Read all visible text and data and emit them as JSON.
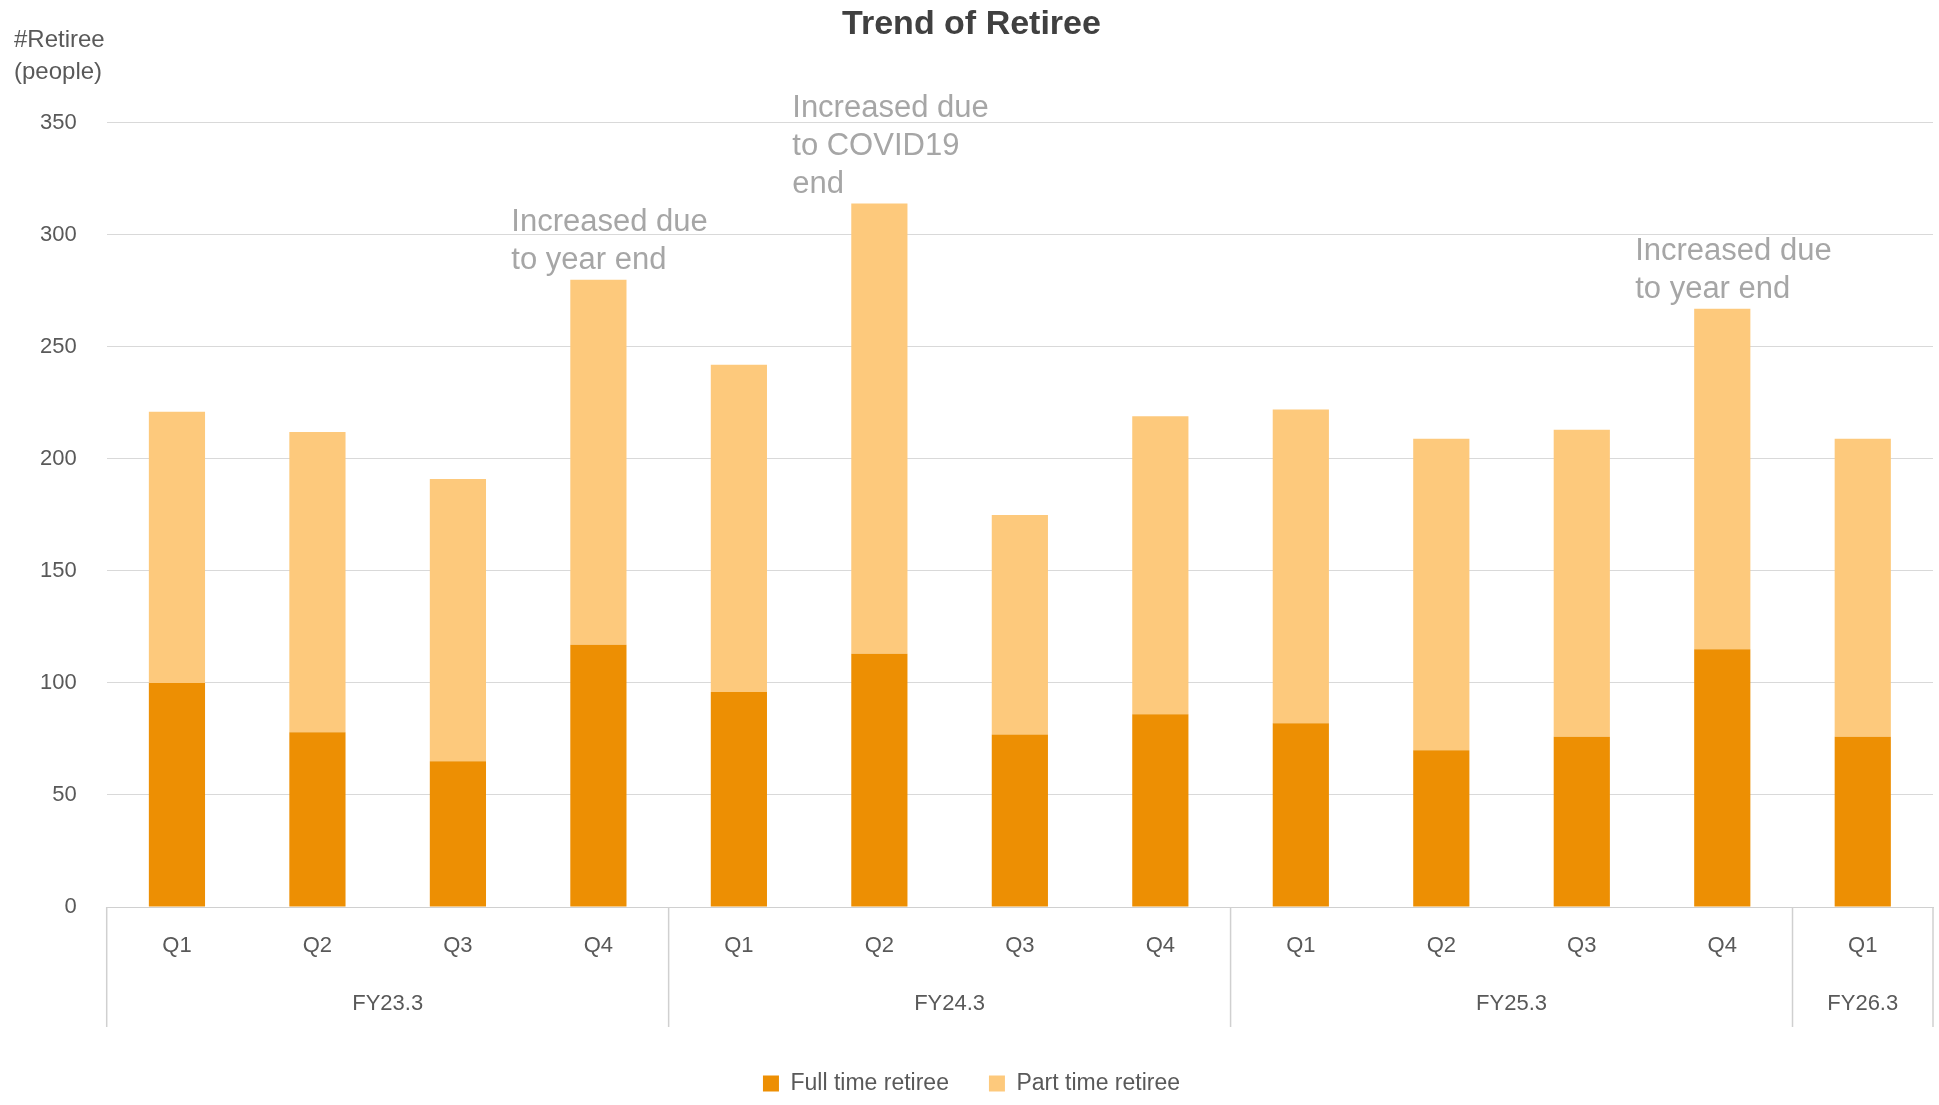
{
  "chart_data": {
    "type": "bar",
    "title": "Trend of Retiree",
    "ylabel": "#Retiree (people)",
    "categories": [
      "Q1",
      "Q2",
      "Q3",
      "Q4",
      "Q1",
      "Q2",
      "Q3",
      "Q4",
      "Q1",
      "Q2",
      "Q3",
      "Q4",
      "Q1"
    ],
    "stacked": true,
    "series": [
      {
        "name": "Full time retiree",
        "color": "#ed8f03",
        "values": [
          100,
          78,
          65,
          117,
          96,
          113,
          77,
          86,
          82,
          70,
          76,
          115,
          76
        ]
      },
      {
        "name": "Part time retiree",
        "color": "#fdc97c",
        "values": [
          121,
          134,
          126,
          163,
          146,
          201,
          98,
          133,
          140,
          139,
          137,
          152,
          133
        ]
      }
    ],
    "ylim": [
      0,
      350
    ],
    "yticks": [
      0,
      50,
      100,
      150,
      200,
      250,
      300,
      350
    ],
    "grid": "y",
    "legend": "bottom",
    "annotations": [
      "Increased due to year end",
      "Increased due to COVID19 end",
      "Increased due to year end",
      "FY23.3",
      "FY24.3",
      "FY25.3",
      "FY26.3"
    ]
  }
}
